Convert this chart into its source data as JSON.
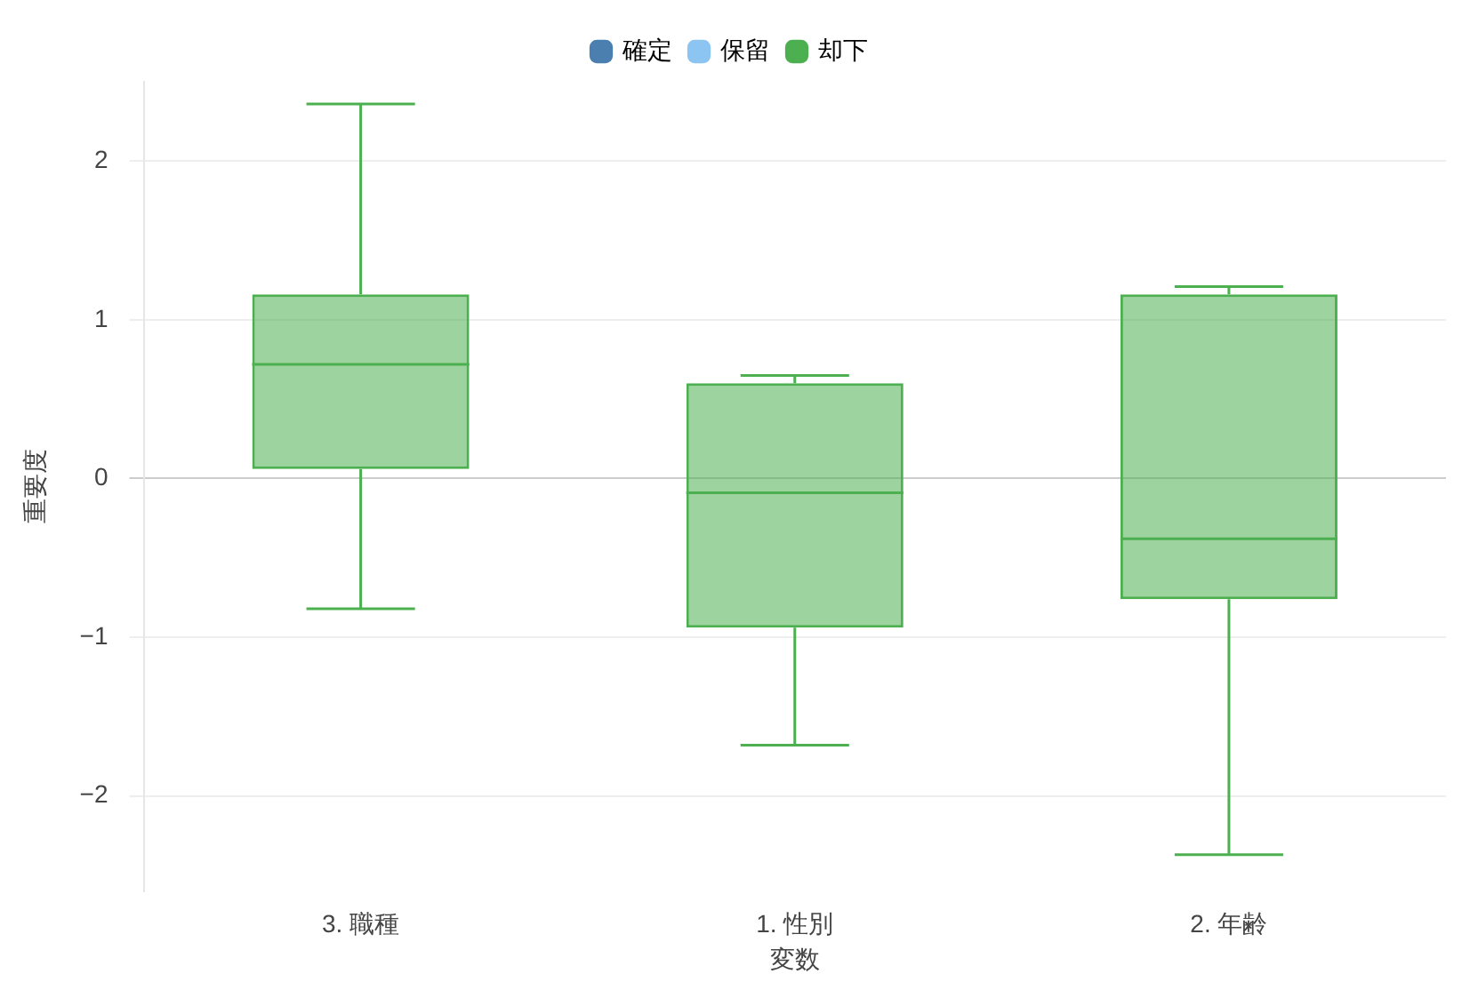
{
  "chart_data": {
    "type": "box",
    "xlabel": "変数",
    "ylabel": "重要度",
    "categories": [
      "3. 職種",
      "1. 性別",
      "2. 年齢"
    ],
    "series": [
      {
        "name": "確定",
        "color": "#4a7fb0",
        "values": [
          null,
          null,
          null
        ]
      },
      {
        "name": "保留",
        "color": "#8cc4f2",
        "values": [
          null,
          null,
          null
        ]
      },
      {
        "name": "却下",
        "color": "#4caf50",
        "boxes": [
          {
            "low": -0.82,
            "q1": 0.06,
            "median": 0.72,
            "q3": 1.16,
            "high": 2.36
          },
          {
            "low": -1.68,
            "q1": -0.94,
            "median": -0.09,
            "q3": 0.6,
            "high": 0.65
          },
          {
            "low": -2.37,
            "q1": -0.76,
            "median": -0.38,
            "q3": 1.16,
            "high": 1.21
          }
        ]
      }
    ],
    "ylim": [
      -2.6,
      2.5
    ],
    "yticks": [
      {
        "value": -2,
        "label": "−2"
      },
      {
        "value": -1,
        "label": "−1"
      },
      0,
      1,
      2
    ],
    "grid": "y",
    "legend": "top"
  }
}
